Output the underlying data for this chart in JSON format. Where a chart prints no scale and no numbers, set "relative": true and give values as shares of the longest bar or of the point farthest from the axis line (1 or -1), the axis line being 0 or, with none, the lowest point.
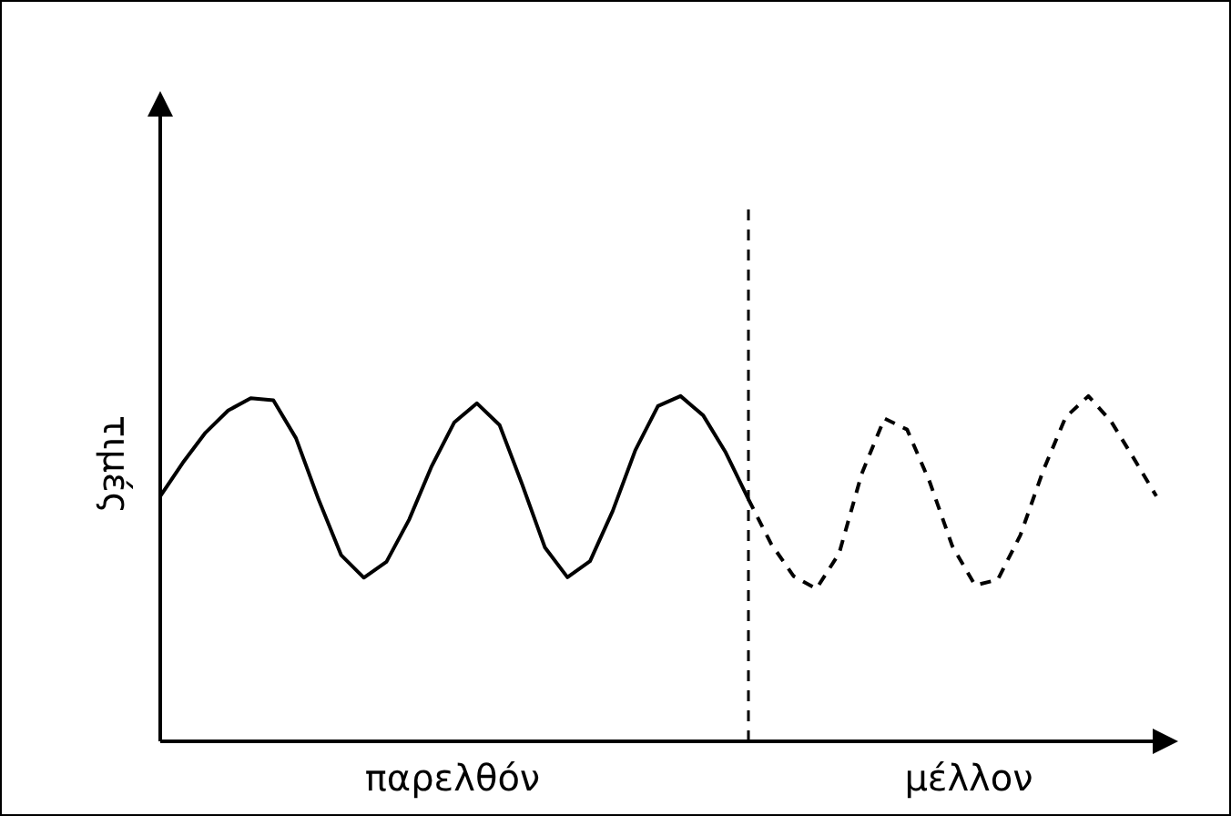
{
  "chart_data": [
    {
      "type": "line",
      "relative": true,
      "ylabel": "τιμές",
      "annotations": [
        "παρελθόν"
      ],
      "categories": [
        null,
        null,
        null,
        null,
        null,
        null,
        null,
        null,
        null,
        null,
        null,
        null,
        null,
        null,
        null,
        null,
        null,
        null,
        null,
        null,
        null,
        null,
        null,
        null,
        null,
        null,
        null
      ],
      "series": [
        {
          "color": "#000000",
          "line_style": "solid",
          "values": [
            0.71,
            0.807,
            0.894,
            0.958,
            0.994,
            0.988,
            0.878,
            0.7,
            0.539,
            0.474,
            0.52,
            0.642,
            0.797,
            0.924,
            0.979,
            0.916,
            0.744,
            0.562,
            0.475,
            0.522,
            0.667,
            0.843,
            0.971,
            1,
            0.944,
            0.836,
            0.701
          ]
        }
      ],
      "grid": false,
      "legend": false,
      "marker": "none"
    },
    {
      "type": "line",
      "relative": true,
      "annotations": [
        "μέλλον"
      ],
      "categories": [
        null,
        null,
        null,
        null,
        null,
        null,
        null,
        null,
        null,
        null,
        null,
        null,
        null,
        null,
        null,
        null,
        null,
        null,
        null
      ],
      "series": [
        {
          "color": "#000000",
          "line_style": "dashed",
          "values": [
            0.701,
            0.572,
            0.478,
            0.442,
            0.544,
            0.775,
            0.935,
            0.903,
            0.751,
            0.565,
            0.452,
            0.468,
            0.597,
            0.783,
            0.939,
            1,
            0.927,
            0.82,
            0.71
          ]
        }
      ],
      "grid": false,
      "legend": false,
      "marker": "none"
    }
  ]
}
